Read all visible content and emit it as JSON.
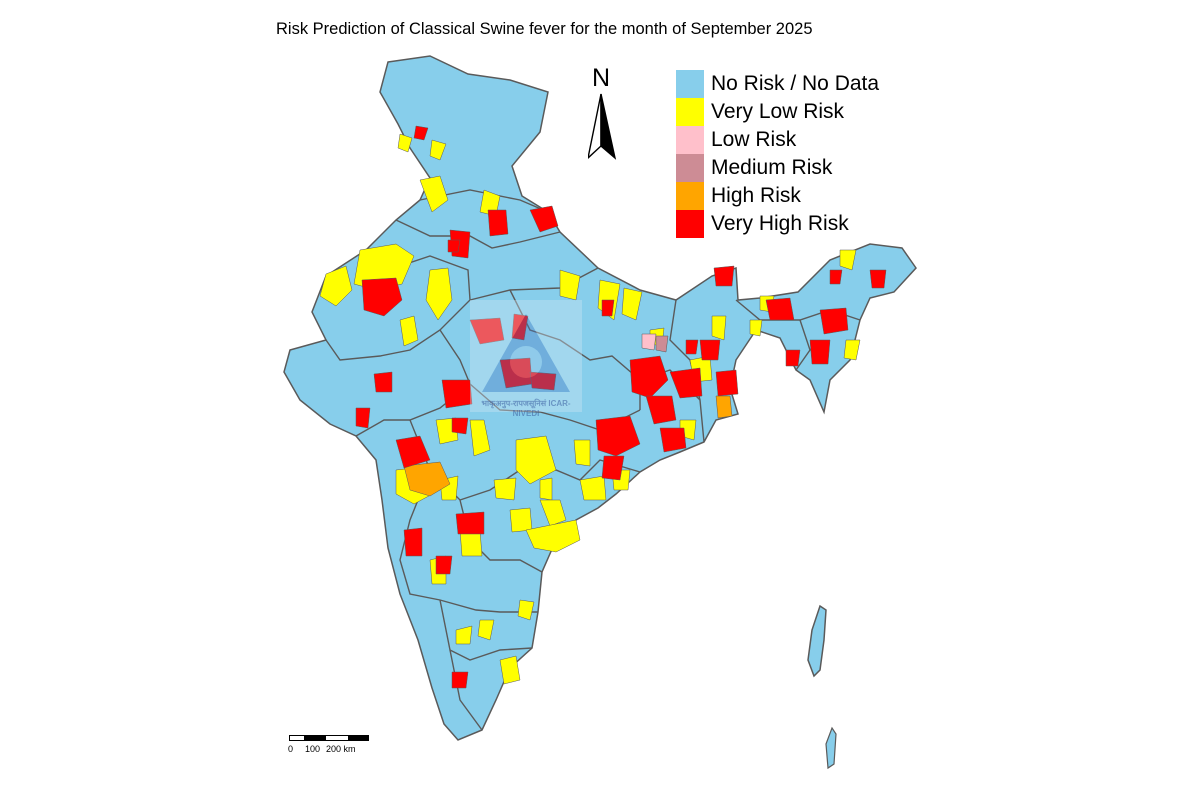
{
  "title": "Risk Prediction of Classical Swine fever for the month of September 2025",
  "north_arrow": {
    "label": "N"
  },
  "legend": {
    "items": [
      {
        "label": "No Risk / No Data",
        "color": "#87ceeb"
      },
      {
        "label": "Very Low Risk",
        "color": "#ffff00"
      },
      {
        "label": "Low Risk",
        "color": "#ffc0cb"
      },
      {
        "label": "Medium Risk",
        "color": "#cd8c95"
      },
      {
        "label": "High Risk",
        "color": "#ffa500"
      },
      {
        "label": "Very High Risk",
        "color": "#ff0000"
      }
    ]
  },
  "scale_bar": {
    "zero": "0",
    "mid": "100",
    "end": "200 km"
  },
  "watermark": {
    "text": "भाकृअनुप-रापजसूनिसं ICAR-NIVEDI"
  },
  "colors": {
    "no_risk": "#87ceeb",
    "very_low": "#ffff00",
    "low": "#ffc0cb",
    "medium": "#cd8c95",
    "high": "#ffa500",
    "very_high": "#ff0000",
    "boundary": "#5a5a5a"
  }
}
